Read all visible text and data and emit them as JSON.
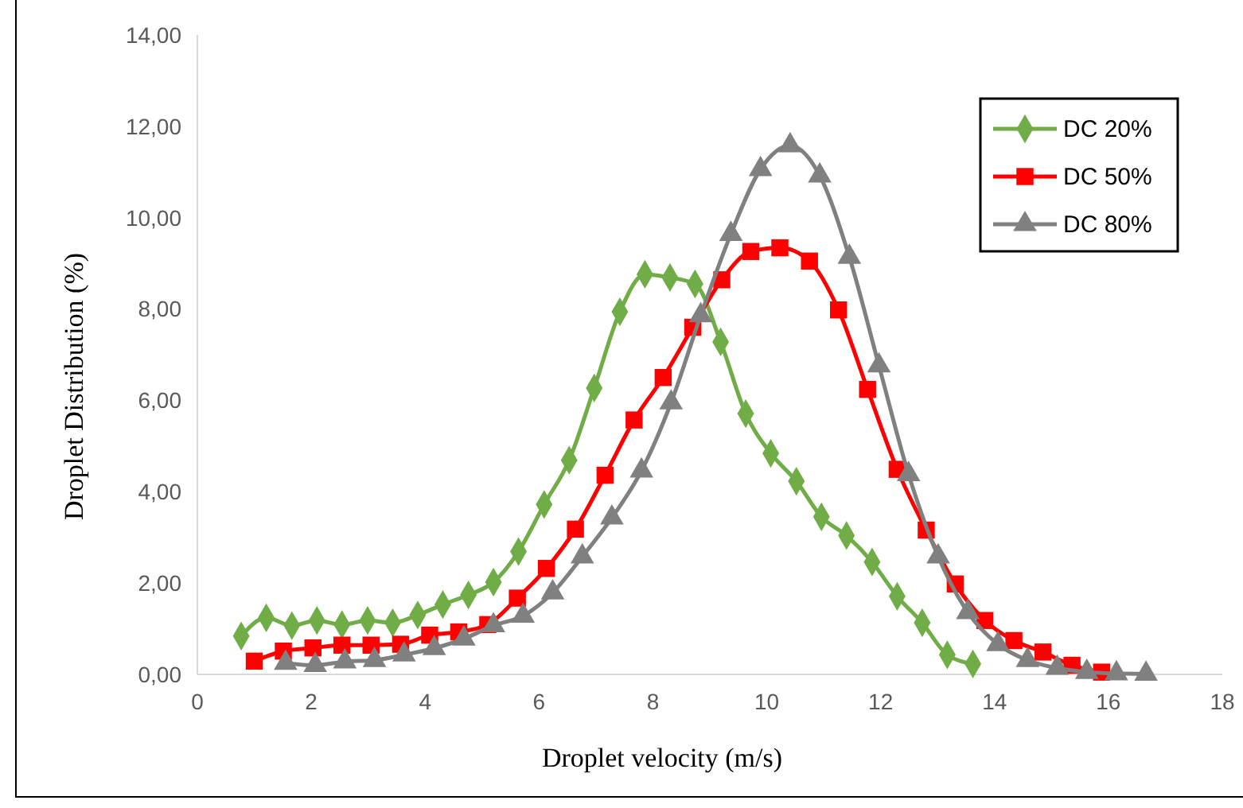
{
  "chart_data": {
    "type": "line",
    "xlabel": "Droplet velocity (m/s)",
    "ylabel": "Droplet Distribution (%)",
    "xlim": [
      0,
      18
    ],
    "xticks": [
      0,
      2,
      4,
      6,
      8,
      10,
      12,
      14,
      16,
      18
    ],
    "ylim": [
      0,
      14
    ],
    "yticks": [
      {
        "value": 0,
        "label": "0,00"
      },
      {
        "value": 2,
        "label": "2,00"
      },
      {
        "value": 4,
        "label": "4,00"
      },
      {
        "value": 6,
        "label": "6,00"
      },
      {
        "value": 8,
        "label": "8,00"
      },
      {
        "value": 10,
        "label": "10,00"
      },
      {
        "value": 12,
        "label": "12,00"
      },
      {
        "value": 14,
        "label": "14,00"
      }
    ],
    "grid": false,
    "legend": "top right",
    "line_style": "solid",
    "series": [
      {
        "name": "DC 20%",
        "color": "#70ad47",
        "marker": "diamond",
        "x": [
          0.77,
          1.21,
          1.66,
          2.1,
          2.54,
          2.99,
          3.43,
          3.87,
          4.31,
          4.76,
          5.2,
          5.64,
          6.09,
          6.53,
          6.97,
          7.42,
          7.86,
          8.3,
          8.74,
          9.19,
          9.63,
          10.07,
          10.52,
          10.96,
          11.4,
          11.85,
          12.29,
          12.73,
          13.17,
          13.62
        ],
        "values": [
          0.84,
          1.24,
          1.07,
          1.18,
          1.09,
          1.18,
          1.13,
          1.3,
          1.53,
          1.74,
          2.02,
          2.69,
          3.72,
          4.69,
          6.27,
          7.94,
          8.76,
          8.69,
          8.55,
          7.28,
          5.71,
          4.84,
          4.23,
          3.45,
          3.04,
          2.46,
          1.71,
          1.13,
          0.43,
          0.23
        ]
      },
      {
        "name": "DC 50%",
        "color": "#ff0000",
        "marker": "square",
        "x": [
          1.0,
          1.51,
          2.03,
          2.54,
          3.05,
          3.57,
          4.08,
          4.59,
          5.1,
          5.62,
          6.13,
          6.64,
          7.16,
          7.67,
          8.18,
          8.7,
          9.21,
          9.72,
          10.23,
          10.75,
          11.26,
          11.77,
          12.29,
          12.8,
          13.31,
          13.83,
          14.34,
          14.85,
          15.36,
          15.88
        ],
        "values": [
          0.29,
          0.51,
          0.58,
          0.64,
          0.64,
          0.66,
          0.86,
          0.93,
          1.09,
          1.67,
          2.32,
          3.18,
          4.36,
          5.57,
          6.5,
          7.6,
          8.64,
          9.26,
          9.34,
          9.05,
          7.98,
          6.24,
          4.49,
          3.16,
          1.98,
          1.18,
          0.74,
          0.49,
          0.2,
          0.05
        ]
      },
      {
        "name": "DC 80%",
        "color": "#808080",
        "marker": "triangle",
        "x": [
          1.55,
          2.07,
          2.59,
          3.11,
          3.63,
          4.16,
          4.68,
          5.2,
          5.72,
          6.24,
          6.76,
          7.28,
          7.8,
          8.32,
          8.84,
          9.37,
          9.89,
          10.41,
          10.93,
          11.45,
          11.97,
          12.49,
          13.01,
          13.53,
          14.06,
          14.58,
          15.1,
          15.62,
          16.14,
          16.66
        ],
        "values": [
          0.25,
          0.2,
          0.28,
          0.31,
          0.43,
          0.57,
          0.78,
          1.07,
          1.28,
          1.79,
          2.58,
          3.43,
          4.46,
          5.95,
          7.86,
          9.64,
          11.06,
          11.58,
          10.92,
          9.14,
          6.76,
          4.38,
          2.58,
          1.36,
          0.66,
          0.31,
          0.14,
          0.05,
          0.02,
          0.01
        ]
      }
    ]
  }
}
